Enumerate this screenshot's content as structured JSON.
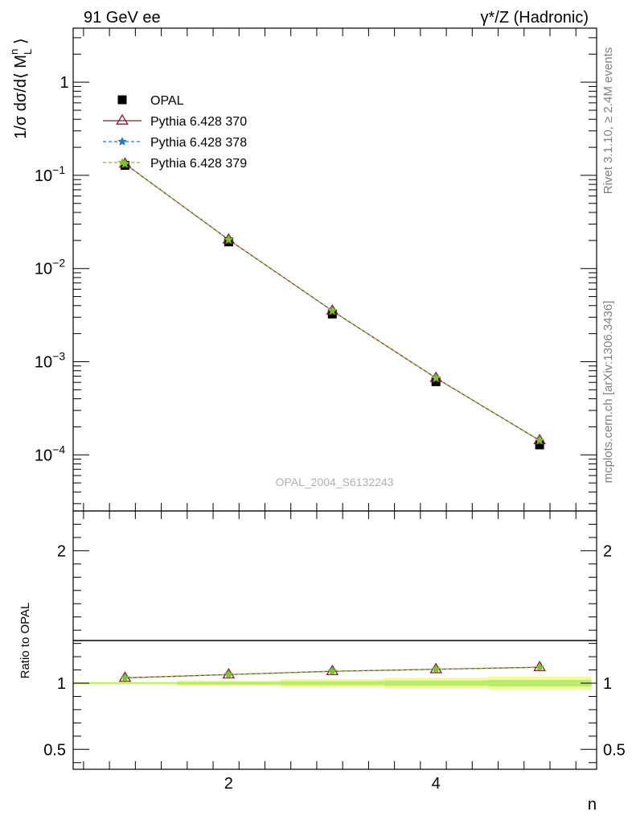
{
  "header": {
    "left": "91 GeV ee",
    "right": "γ*/Z (Hadronic)"
  },
  "side_labels": {
    "rivet": "Rivet 3.1.10, ≥ 2.4M events",
    "mcplots": "mcplots.cern.ch [arXiv:1306.3436]"
  },
  "watermark": "OPAL_2004_S6132243",
  "chart_data": [
    {
      "type": "scatter",
      "panel": "main",
      "ylabel": "1/σ dσ/d⟨ M_L^n ⟩",
      "yscale": "log",
      "ylim": [
        2.5e-05,
        3.8
      ],
      "xlim": [
        0.5,
        5.55
      ],
      "y_ticks": [
        {
          "v": 1,
          "label": "1"
        },
        {
          "v": 0.1,
          "label": "10",
          "exp": "−1"
        },
        {
          "v": 0.01,
          "label": "10",
          "exp": "−2"
        },
        {
          "v": 0.001,
          "label": "10",
          "exp": "−3"
        },
        {
          "v": 0.0001,
          "label": "10",
          "exp": "−4"
        }
      ],
      "x": [
        1,
        2,
        3,
        4,
        5
      ],
      "series": [
        {
          "name": "OPAL",
          "marker": "square",
          "color": "#000000",
          "values": [
            0.128,
            0.0193,
            0.00325,
            0.00061,
            0.000128
          ]
        },
        {
          "name": "Pythia 6.428 370",
          "marker": "triangle-open",
          "color": "#8b1a2a",
          "line": "solid",
          "values": [
            0.133,
            0.0204,
            0.00352,
            0.000668,
            0.000143
          ]
        },
        {
          "name": "Pythia 6.428 378",
          "marker": "star",
          "color": "#1f77d0",
          "line": "dashed",
          "values": [
            0.133,
            0.0204,
            0.00352,
            0.000668,
            0.000143
          ]
        },
        {
          "name": "Pythia 6.428 379",
          "marker": "star",
          "color": "#7cc42a",
          "line": "dashed",
          "values": [
            0.133,
            0.0204,
            0.00352,
            0.000668,
            0.000143
          ]
        }
      ]
    },
    {
      "type": "line",
      "panel": "ratio",
      "ylabel": "Ratio to OPAL",
      "xlabel": "n",
      "ylim": [
        0.35,
        2.3
      ],
      "xlim": [
        0.5,
        5.55
      ],
      "y_ticks": [
        {
          "v": 0.5,
          "label": "0.5"
        },
        {
          "v": 1,
          "label": "1"
        },
        {
          "v": 2,
          "label": "2"
        }
      ],
      "x_ticks": [
        {
          "v": 2,
          "label": "2"
        },
        {
          "v": 4,
          "label": "4"
        }
      ],
      "x": [
        1,
        2,
        3,
        4,
        5
      ],
      "series": [
        {
          "name": "Pythia 6.428 370",
          "color": "#8b1a2a",
          "values": [
            1.04,
            1.065,
            1.09,
            1.105,
            1.12
          ]
        },
        {
          "name": "Pythia 6.428 378",
          "color": "#1f77d0",
          "values": [
            1.04,
            1.065,
            1.09,
            1.105,
            1.12
          ]
        },
        {
          "name": "Pythia 6.428 379",
          "color": "#7cc42a",
          "values": [
            1.04,
            1.065,
            1.09,
            1.105,
            1.12
          ]
        }
      ],
      "uncertainty_band": {
        "x_edges": [
          0.5,
          1.5,
          2.5,
          3.5,
          4.5,
          5.5
        ],
        "inner": [
          0.005,
          0.01,
          0.015,
          0.02,
          0.025
        ],
        "outer": [
          0.01,
          0.02,
          0.03,
          0.04,
          0.05
        ]
      }
    }
  ]
}
